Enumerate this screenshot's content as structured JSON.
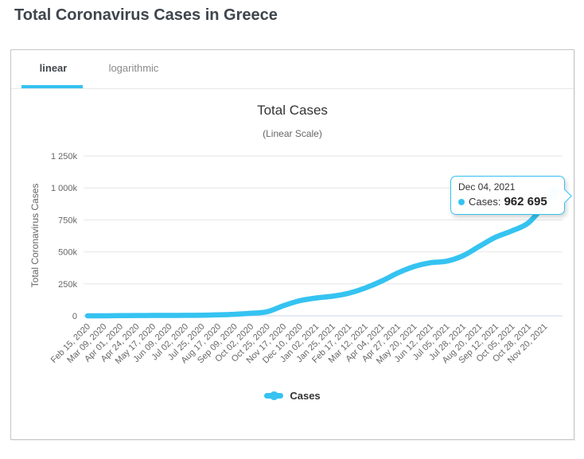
{
  "page": {
    "title": "Total Coronavirus Cases in Greece"
  },
  "tabs": [
    {
      "label": "linear",
      "active": true
    },
    {
      "label": "logarithmic",
      "active": false
    }
  ],
  "chart": {
    "title": "Total Cases",
    "subtitle": "(Linear Scale)",
    "y_axis_title": "Total Coronavirus Cases",
    "legend_label": "Cases",
    "tooltip": {
      "date": "Dec 04, 2021",
      "series_label": "Cases:",
      "value": "962 695"
    }
  },
  "colors": {
    "accent": "#35c3f1",
    "grid": "#e6e6e6",
    "axis_line": "#ccd6eb",
    "tick_text": "#666666",
    "title_text": "#333333"
  },
  "chart_data": {
    "type": "line",
    "title": "Total Cases",
    "subtitle": "(Linear Scale)",
    "ylabel": "Total Coronavirus Cases",
    "ylim": [
      0,
      1250000
    ],
    "grid": "horizontal",
    "legend_position": "bottom",
    "yticks": [
      {
        "label": "0",
        "value": 0
      },
      {
        "label": "250k",
        "value": 250000
      },
      {
        "label": "500k",
        "value": 500000
      },
      {
        "label": "750k",
        "value": 750000
      },
      {
        "label": "1 000k",
        "value": 1000000
      },
      {
        "label": "1 250k",
        "value": 1250000
      }
    ],
    "xtick_labels": [
      "Feb 15, 2020",
      "Mar 09, 2020",
      "Apr 01, 2020",
      "Apr 24, 2020",
      "May 17, 2020",
      "Jun 09, 2020",
      "Jul 02, 2020",
      "Jul 25, 2020",
      "Aug 17, 2020",
      "Sep 09, 2020",
      "Oct 02, 2020",
      "Oct 25, 2020",
      "Nov 17, 2020",
      "Dec 10, 2020",
      "Jan 02, 2021",
      "Jan 25, 2021",
      "Feb 17, 2021",
      "Mar 12, 2021",
      "Apr 04, 2021",
      "Apr 27, 2021",
      "May 20, 2021",
      "Jun 12, 2021",
      "Jul 05, 2021",
      "Jul 28, 2021",
      "Aug 20, 2021",
      "Sep 12, 2021",
      "Oct 05, 2021",
      "Oct 28, 2021",
      "Nov 20, 2021"
    ],
    "xtick_interval_days": 23,
    "series": [
      {
        "name": "Cases",
        "points": [
          {
            "date": "Feb 15, 2020",
            "day": 0,
            "value": 0
          },
          {
            "date": "Mar 09, 2020",
            "day": 23,
            "value": 73
          },
          {
            "date": "Apr 01, 2020",
            "day": 46,
            "value": 1415
          },
          {
            "date": "Apr 24, 2020",
            "day": 69,
            "value": 2463
          },
          {
            "date": "May 17, 2020",
            "day": 92,
            "value": 2834
          },
          {
            "date": "Jun 09, 2020",
            "day": 115,
            "value": 3049
          },
          {
            "date": "Jul 02, 2020",
            "day": 138,
            "value": 3432
          },
          {
            "date": "Jul 25, 2020",
            "day": 161,
            "value": 4227
          },
          {
            "date": "Aug 17, 2020",
            "day": 184,
            "value": 7222
          },
          {
            "date": "Sep 09, 2020",
            "day": 207,
            "value": 11832
          },
          {
            "date": "Oct 02, 2020",
            "day": 230,
            "value": 19613
          },
          {
            "date": "Oct 25, 2020",
            "day": 253,
            "value": 31939
          },
          {
            "date": "Nov 17, 2020",
            "day": 276,
            "value": 78825
          },
          {
            "date": "Dec 10, 2020",
            "day": 299,
            "value": 118045
          },
          {
            "date": "Jan 02, 2021",
            "day": 322,
            "value": 139447
          },
          {
            "date": "Jan 25, 2021",
            "day": 345,
            "value": 153226
          },
          {
            "date": "Feb 17, 2021",
            "day": 368,
            "value": 176352
          },
          {
            "date": "Mar 12, 2021",
            "day": 391,
            "value": 216747
          },
          {
            "date": "Apr 04, 2021",
            "day": 414,
            "value": 270455
          },
          {
            "date": "Apr 27, 2021",
            "day": 437,
            "value": 334436
          },
          {
            "date": "May 20, 2021",
            "day": 460,
            "value": 385140
          },
          {
            "date": "Jun 12, 2021",
            "day": 483,
            "value": 414737
          },
          {
            "date": "Jul 05, 2021",
            "day": 506,
            "value": 426963
          },
          {
            "date": "Jul 28, 2021",
            "day": 529,
            "value": 469675
          },
          {
            "date": "Aug 20, 2021",
            "day": 552,
            "value": 542679
          },
          {
            "date": "Sep 12, 2021",
            "day": 575,
            "value": 614912
          },
          {
            "date": "Oct 05, 2021",
            "day": 598,
            "value": 664205
          },
          {
            "date": "Oct 28, 2021",
            "day": 621,
            "value": 726097
          },
          {
            "date": "Nov 20, 2021",
            "day": 644,
            "value": 867317
          },
          {
            "date": "Dec 04, 2021",
            "day": 658,
            "value": 962695
          }
        ]
      }
    ]
  }
}
